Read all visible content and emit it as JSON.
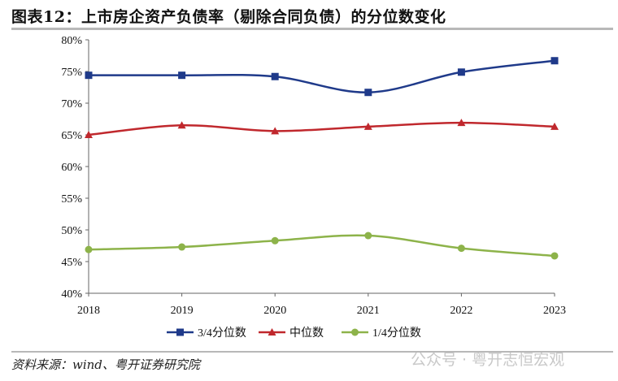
{
  "title": "图表12：上市房企资产负债率（剔除合同负债）的分位数变化",
  "source": "资料来源：wind、粤开证券研究院",
  "watermark": "公众号 · 粤开志恒宏观",
  "chart_data": {
    "type": "line",
    "title": "图表12：上市房企资产负债率（剔除合同负债）的分位数变化",
    "categories": [
      "2018",
      "2019",
      "2020",
      "2021",
      "2022",
      "2023"
    ],
    "ylim": [
      40,
      80
    ],
    "yticks": [
      40,
      45,
      50,
      55,
      60,
      65,
      70,
      75,
      80
    ],
    "ytick_labels": [
      "40%",
      "45%",
      "50%",
      "55%",
      "60%",
      "65%",
      "70%",
      "75%",
      "80%"
    ],
    "legend_position": "bottom",
    "series": [
      {
        "name": "3/4分位数",
        "color": "#1f3a8a",
        "marker": "square",
        "values": [
          74.4,
          74.4,
          74.2,
          71.7,
          74.9,
          76.7
        ]
      },
      {
        "name": "中位数",
        "color": "#c0282d",
        "marker": "triangle",
        "values": [
          65.0,
          66.5,
          65.6,
          66.3,
          66.9,
          66.3
        ]
      },
      {
        "name": "1/4分位数",
        "color": "#8db34a",
        "marker": "circle",
        "values": [
          46.9,
          47.3,
          48.3,
          49.1,
          47.1,
          45.9
        ]
      }
    ]
  }
}
